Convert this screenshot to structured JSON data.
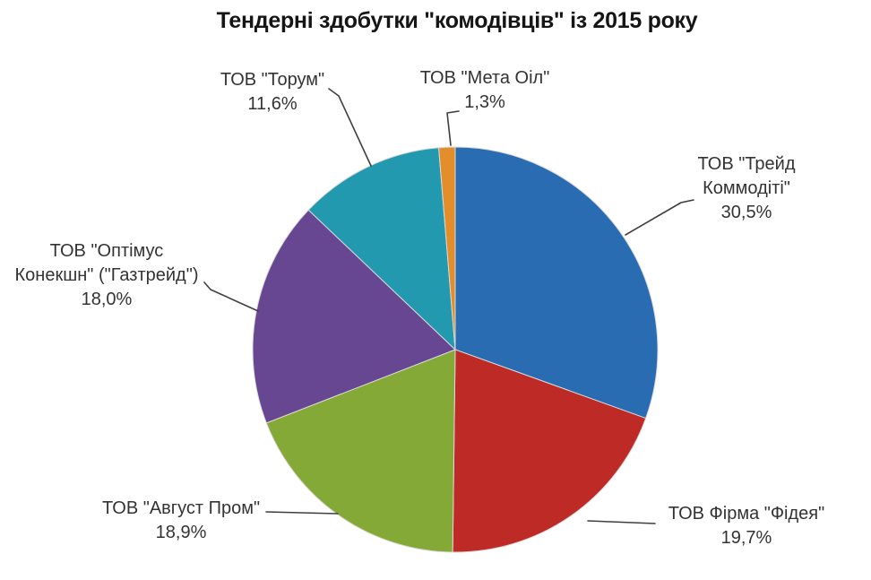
{
  "chart_data": {
    "type": "pie",
    "title": "Тендерні здобутки \"комодівців\" із 2015 року",
    "value_suffix": "%",
    "direction": "clockwise",
    "start_angle_deg": 0,
    "legend_position": "none (callout labels with leader lines)",
    "slices": [
      {
        "name": "ТОВ \"Трейд Коммодіті\"",
        "value": 30.5,
        "percent_label": "30,5%",
        "color": "#2A6CB2",
        "label_lines": [
          "ТОВ \"Трейд",
          "Коммодіті\"",
          "30,5%"
        ]
      },
      {
        "name": "ТОВ Фірма \"Фідея\"",
        "value": 19.7,
        "percent_label": "19,7%",
        "color": "#BE2A26",
        "label_lines": [
          "ТОВ Фірма \"Фідея\"",
          "19,7%"
        ]
      },
      {
        "name": "ТОВ \"Август Пром\"",
        "value": 18.9,
        "percent_label": "18,9%",
        "color": "#85A936",
        "label_lines": [
          "ТОВ \"Август Пром\"",
          "18,9%"
        ]
      },
      {
        "name": "ТОВ \"Оптімус Конекшн\" (\"Газтрейд\")",
        "value": 18.0,
        "percent_label": "18,0%",
        "color": "#674692",
        "label_lines": [
          "ТОВ \"Оптімус",
          "Конекшн\" (\"Газтрейд\")",
          "18,0%"
        ]
      },
      {
        "name": "ТОВ \"Торум\"",
        "value": 11.6,
        "percent_label": "11,6%",
        "color": "#2399AF",
        "label_lines": [
          "ТОВ \"Торум\"",
          "11,6%"
        ]
      },
      {
        "name": "ТОВ \"Мета Оіл\"",
        "value": 1.3,
        "percent_label": "1,3%",
        "color": "#E38E2A",
        "label_lines": [
          "ТОВ \"Мета Оіл\"",
          "1,3%"
        ]
      }
    ]
  }
}
